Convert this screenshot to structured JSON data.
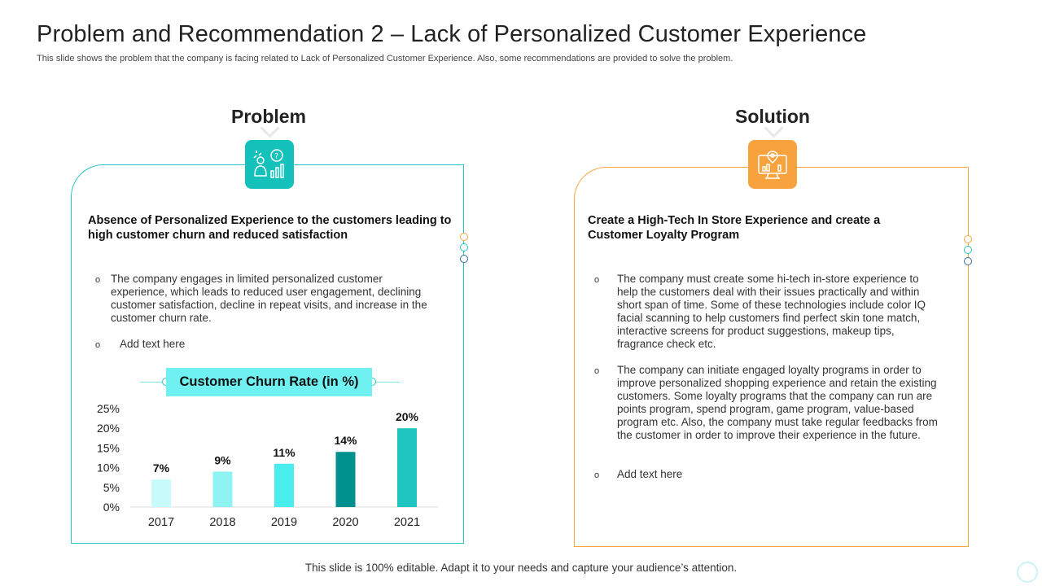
{
  "title": "Problem and Recommendation 2 – Lack of Personalized Customer Experience",
  "subtitle": "This slide shows the problem that the company is facing related to Lack of Personalized Customer Experience. Also, some recommendations are provided to solve the problem.",
  "problem": {
    "heading": "Problem",
    "icon": "analytics-person-chart-icon",
    "statement": "Absence of Personalized Experience to the customers leading to high customer churn and reduced satisfaction",
    "bullets": [
      "The company engages in limited personalized customer experience, which leads to reduced user engagement, declining customer satisfaction, decline in repeat visits, and increase in the customer churn rate.",
      "Add text here"
    ],
    "accent": "#27c3c3"
  },
  "solution": {
    "heading": "Solution",
    "icon": "monitor-location-chart-icon",
    "statement": "Create a High-Tech In Store Experience and create a Customer Loyalty Program",
    "bullets": [
      "The company must create some hi-tech in-store experience to help the customers deal with their issues practically and within short span of time. Some of these technologies include color IQ facial scanning to help customers find perfect skin tone match, interactive screens for product suggestions, makeup tips, fragrance check etc.",
      "The company can initiate engaged loyalty programs in order to improve personalized shopping experience and retain the existing customers. Some loyalty programs that the company can run are points program, spend program, game program, value-based program etc. Also, the company must take regular feedbacks from the customer in order to improve their experience in the future.",
      "Add text here"
    ],
    "accent": "#f5a641"
  },
  "bullet_marker": "o",
  "chart_data": {
    "type": "bar",
    "title": "Customer Churn Rate (in %)",
    "categories": [
      "2017",
      "2018",
      "2019",
      "2020",
      "2021"
    ],
    "values": [
      7,
      9,
      11,
      14,
      20
    ],
    "value_labels": [
      "7%",
      "9%",
      "11%",
      "14%",
      "20%"
    ],
    "y_ticks": [
      "0%",
      "5%",
      "10%",
      "15%",
      "20%",
      "25%"
    ],
    "ylim": [
      0,
      25
    ],
    "colors": [
      "#c8fbfb",
      "#8ff3f3",
      "#49eded",
      "#00908e",
      "#1fc6c0"
    ],
    "grid": false
  },
  "footer": "This slide is 100% editable. Adapt it to your needs and capture your audience’s attention."
}
